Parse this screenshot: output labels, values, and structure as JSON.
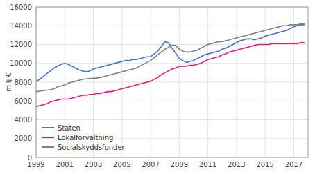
{
  "chart_data": {
    "type": "line",
    "ylabel": "milj €",
    "xlim": [
      1999,
      2018
    ],
    "ylim": [
      0,
      16000
    ],
    "xticks": [
      1999,
      2001,
      2003,
      2005,
      2007,
      2009,
      2011,
      2013,
      2015,
      2017
    ],
    "yticks": [
      0,
      2000,
      4000,
      6000,
      8000,
      10000,
      12000,
      14000,
      16000
    ],
    "grid": true,
    "legend": "lower left",
    "x": [
      1999,
      1999.25,
      1999.5,
      1999.75,
      2000,
      2000.25,
      2000.5,
      2000.75,
      2001,
      2001.25,
      2001.5,
      2001.75,
      2002,
      2002.25,
      2002.5,
      2002.75,
      2003,
      2003.25,
      2003.5,
      2003.75,
      2004,
      2004.25,
      2004.5,
      2004.75,
      2005,
      2005.25,
      2005.5,
      2005.75,
      2006,
      2006.25,
      2006.5,
      2006.75,
      2007,
      2007.25,
      2007.5,
      2007.75,
      2008,
      2008.25,
      2008.5,
      2008.75,
      2009,
      2009.25,
      2009.5,
      2009.75,
      2010,
      2010.25,
      2010.5,
      2010.75,
      2011,
      2011.25,
      2011.5,
      2011.75,
      2012,
      2012.25,
      2012.5,
      2012.75,
      2013,
      2013.25,
      2013.5,
      2013.75,
      2014,
      2014.25,
      2014.5,
      2014.75,
      2015,
      2015.25,
      2015.5,
      2015.75,
      2016,
      2016.25,
      2016.5,
      2016.75,
      2017,
      2017.25,
      2017.5,
      2017.75
    ],
    "series": [
      {
        "name": "Staten",
        "color": "#4472c4",
        "values": [
          8050,
          8300,
          8600,
          8900,
          9200,
          9500,
          9700,
          9900,
          10000,
          9900,
          9700,
          9500,
          9300,
          9200,
          9100,
          9200,
          9400,
          9500,
          9600,
          9700,
          9800,
          9900,
          10000,
          10100,
          10200,
          10300,
          10300,
          10400,
          10400,
          10500,
          10600,
          10700,
          10700,
          11000,
          11300,
          11800,
          12300,
          12200,
          11600,
          11100,
          10500,
          10300,
          10100,
          10200,
          10300,
          10500,
          10700,
          10900,
          11000,
          11100,
          11200,
          11300,
          11500,
          11600,
          11800,
          12000,
          12200,
          12400,
          12500,
          12600,
          12600,
          12500,
          12600,
          12700,
          12900,
          13000,
          13100,
          13200,
          13300,
          13400,
          13500,
          13700,
          13900,
          14000,
          14100,
          14100
        ]
      },
      {
        "name": "Lokalförvaltning",
        "color": "#e8187a",
        "values": [
          5400,
          5500,
          5600,
          5700,
          5900,
          6000,
          6100,
          6200,
          6200,
          6200,
          6300,
          6400,
          6500,
          6600,
          6600,
          6700,
          6700,
          6800,
          6800,
          6900,
          7000,
          7000,
          7100,
          7200,
          7300,
          7400,
          7500,
          7600,
          7700,
          7800,
          7900,
          8000,
          8100,
          8300,
          8500,
          8800,
          9000,
          9200,
          9400,
          9500,
          9700,
          9700,
          9700,
          9800,
          9800,
          9900,
          10000,
          10200,
          10400,
          10500,
          10600,
          10700,
          10900,
          11000,
          11200,
          11300,
          11400,
          11500,
          11600,
          11700,
          11800,
          11900,
          12000,
          12000,
          12000,
          12000,
          12100,
          12100,
          12100,
          12100,
          12100,
          12100,
          12100,
          12100,
          12200,
          12200
        ]
      },
      {
        "name": "Socialskyddsfonder",
        "color": "#7f7f7f",
        "values": [
          7000,
          7050,
          7100,
          7150,
          7200,
          7300,
          7500,
          7600,
          7700,
          7900,
          8000,
          8100,
          8200,
          8300,
          8350,
          8400,
          8400,
          8450,
          8500,
          8600,
          8700,
          8800,
          8900,
          9000,
          9100,
          9200,
          9300,
          9400,
          9500,
          9700,
          9900,
          10100,
          10300,
          10600,
          10900,
          11200,
          11500,
          11700,
          11900,
          11900,
          11500,
          11300,
          11200,
          11200,
          11300,
          11400,
          11600,
          11800,
          12000,
          12100,
          12200,
          12300,
          12300,
          12400,
          12500,
          12600,
          12700,
          12800,
          12900,
          13000,
          13100,
          13200,
          13300,
          13400,
          13500,
          13600,
          13700,
          13800,
          13900,
          14000,
          14000,
          14100,
          14100,
          14100,
          14200,
          14200
        ]
      }
    ]
  }
}
